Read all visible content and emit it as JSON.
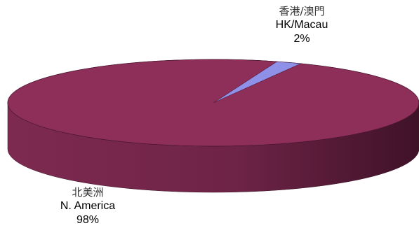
{
  "chart_data": {
    "type": "pie",
    "style": "3d",
    "slices": [
      {
        "name": "北美洲",
        "label_en": "N. America",
        "value": 98,
        "value_label": "98%",
        "color": "#8e2f5a",
        "dark_color": "#5a1c36",
        "color_key": "maroon"
      },
      {
        "name": "香港/澳門",
        "label_en": "HK/Macau",
        "value": 2,
        "value_label": "2%",
        "color": "#8f91e8",
        "dark_color": "#5c5ebd",
        "color_key": "light blue"
      }
    ],
    "title": "",
    "legend": "none"
  }
}
